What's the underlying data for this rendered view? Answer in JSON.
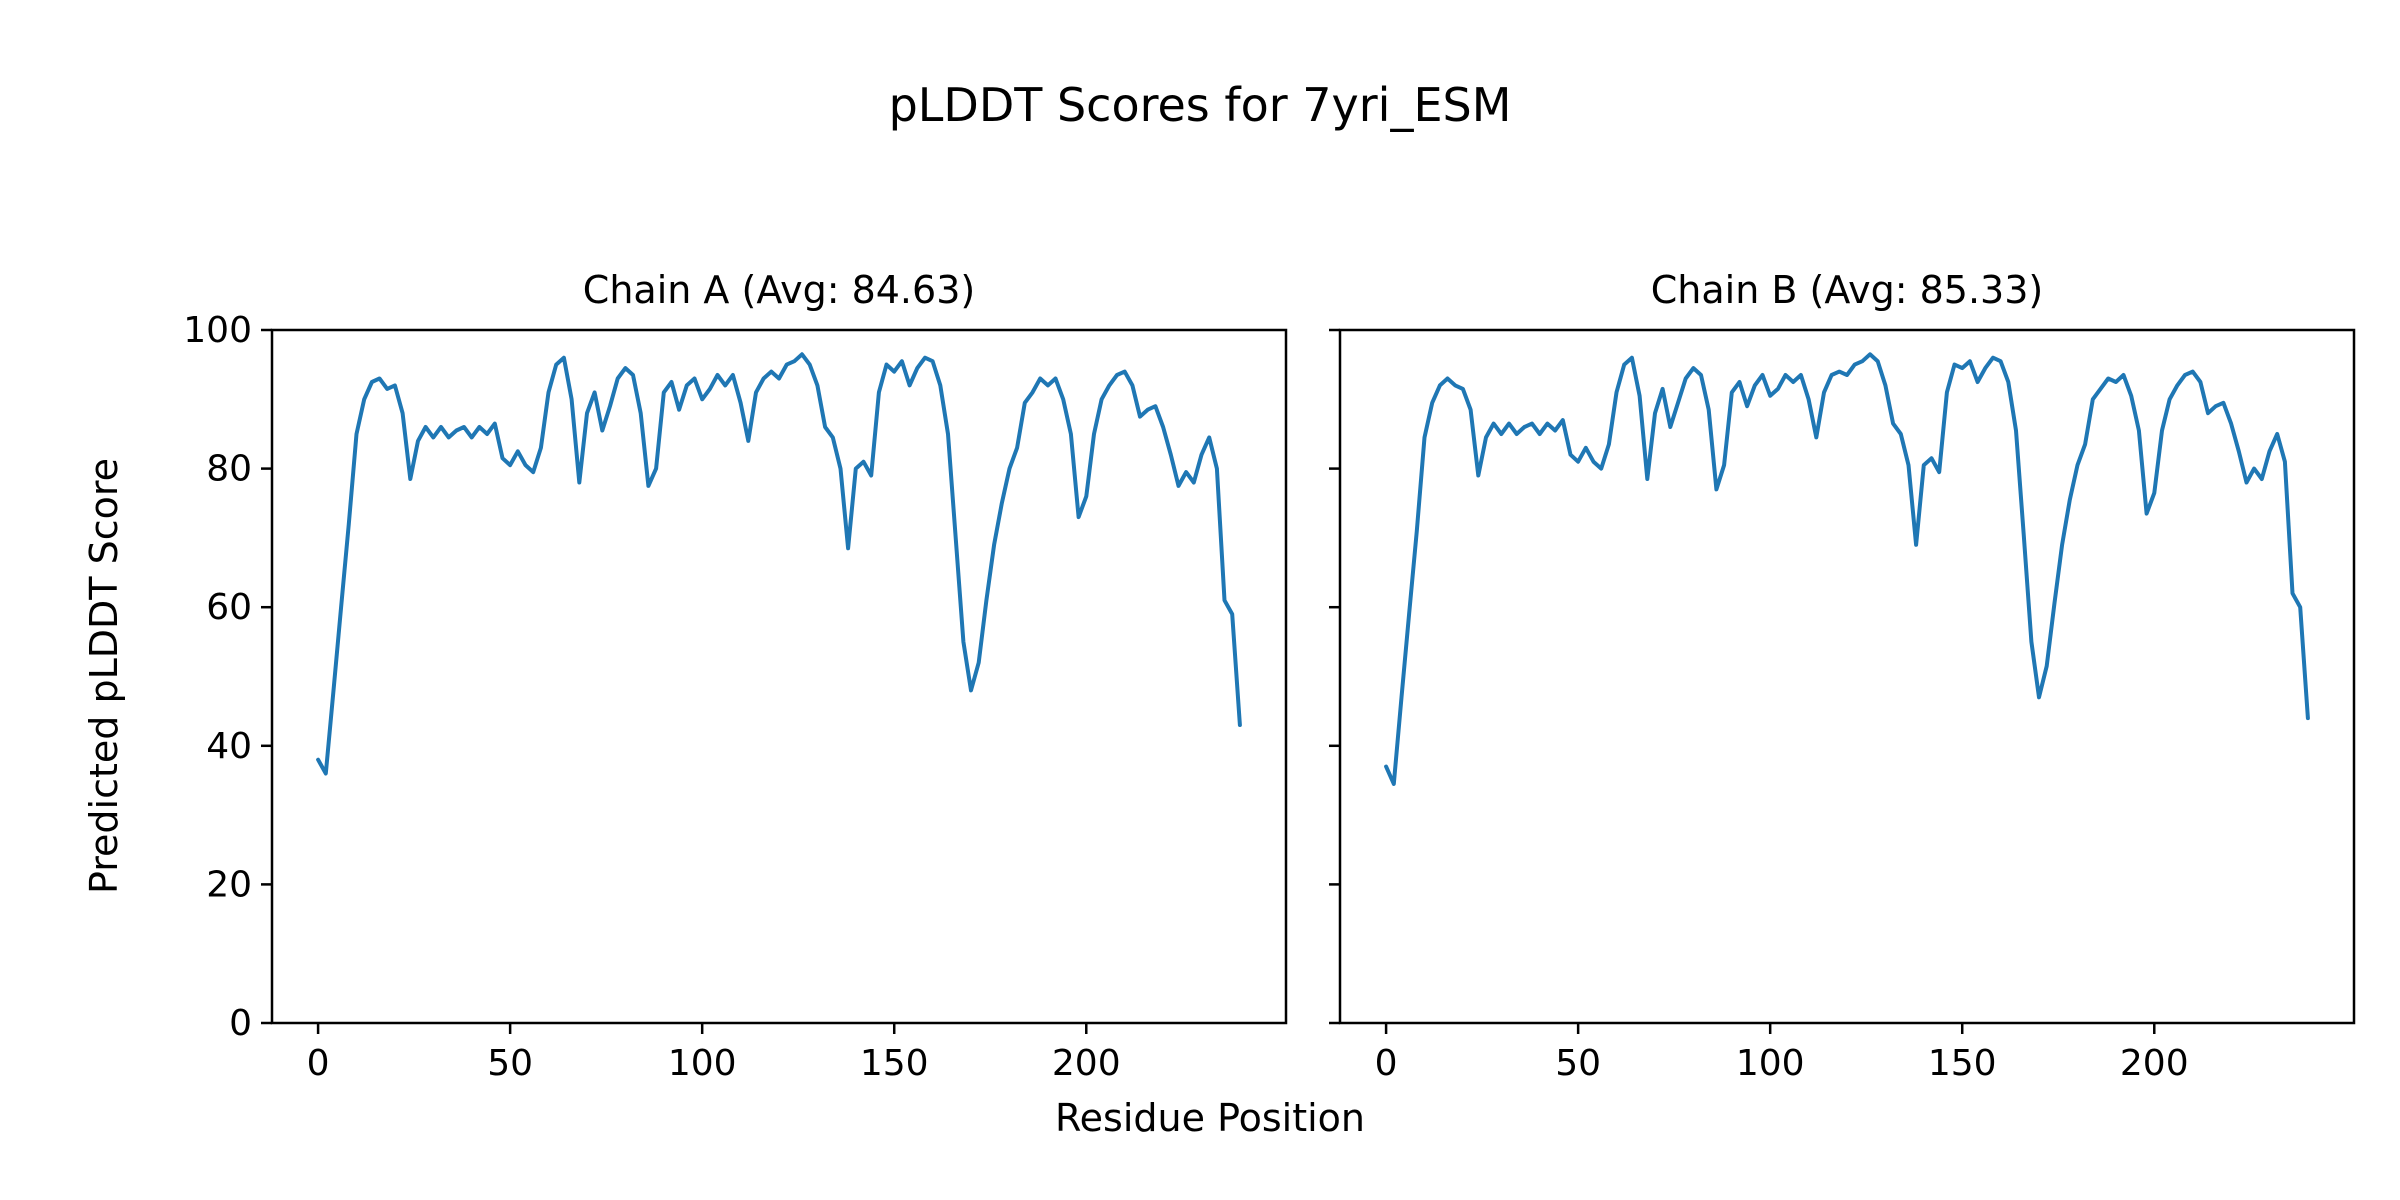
{
  "figure": {
    "title": "pLDDT Scores for 7yri_ESM",
    "xlabel": "Residue Position",
    "ylabel": "Predicted pLDDT Score"
  },
  "chart_data": {
    "type": "line",
    "title": "pLDDT Scores for 7yri_ESM",
    "xlabel": "Residue Position",
    "ylabel": "Predicted pLDDT Score",
    "grid": false,
    "legend": "none",
    "line_color": "#1f77b4",
    "xlim": [
      -12,
      252
    ],
    "ylim": [
      0,
      100
    ],
    "xticks": [
      0,
      50,
      100,
      150,
      200
    ],
    "yticks": [
      0,
      20,
      40,
      60,
      80,
      100
    ],
    "x_step": 2,
    "subplots": [
      {
        "title": "Chain A (Avg: 84.63)",
        "avg": 84.63,
        "show_y_tick_labels": true,
        "y": [
          38,
          36,
          48,
          60,
          72,
          85,
          90,
          92.5,
          93,
          91.5,
          92,
          88,
          78.5,
          84,
          86,
          84.5,
          86,
          84.5,
          85.5,
          86,
          84.5,
          86,
          85,
          86.5,
          81.5,
          80.5,
          82.5,
          80.5,
          79.5,
          83,
          91,
          95,
          96,
          90,
          78,
          88,
          91,
          85.5,
          89,
          93,
          94.5,
          93.5,
          88,
          77.5,
          80,
          91,
          92.5,
          88.5,
          92,
          93,
          90,
          91.5,
          93.5,
          92,
          93.5,
          89.5,
          84,
          91,
          93,
          94,
          93,
          95,
          95.5,
          96.5,
          95,
          92,
          86,
          84.5,
          80,
          68.5,
          80,
          81,
          79,
          91,
          95,
          94,
          95.5,
          92,
          94.5,
          96,
          95.5,
          92,
          85,
          70,
          55,
          48,
          52,
          61,
          69,
          75,
          80,
          83,
          89.5,
          91,
          93,
          92,
          93,
          90,
          85,
          73,
          76,
          85,
          90,
          92,
          93.5,
          94,
          92,
          87.5,
          88.5,
          89,
          86,
          82,
          77.5,
          79.5,
          78,
          82,
          84.5,
          80,
          61,
          59,
          43
        ]
      },
      {
        "title": "Chain B (Avg: 85.33)",
        "avg": 85.33,
        "show_y_tick_labels": false,
        "y": [
          37,
          34.5,
          47,
          59,
          71,
          84.5,
          89.5,
          92,
          93,
          92,
          91.5,
          88.5,
          79,
          84.5,
          86.5,
          85,
          86.5,
          85,
          86,
          86.5,
          85,
          86.5,
          85.5,
          87,
          82,
          81,
          83,
          81,
          80,
          83.5,
          91,
          95,
          96,
          90.5,
          78.5,
          88,
          91.5,
          86,
          89.5,
          93,
          94.5,
          93.5,
          88.5,
          77,
          80.5,
          91,
          92.5,
          89,
          92,
          93.5,
          90.5,
          91.5,
          93.5,
          92.5,
          93.5,
          90,
          84.5,
          91,
          93.5,
          94,
          93.5,
          95,
          95.5,
          96.5,
          95.5,
          92,
          86.5,
          85,
          80.5,
          69,
          80.5,
          81.5,
          79.5,
          91,
          95,
          94.5,
          95.5,
          92.5,
          94.5,
          96,
          95.5,
          92.5,
          85.5,
          70.5,
          55,
          47,
          51.5,
          60.5,
          69,
          75.5,
          80.5,
          83.5,
          90,
          91.5,
          93,
          92.5,
          93.5,
          90.5,
          85.5,
          73.5,
          76.5,
          85.5,
          90,
          92,
          93.5,
          94,
          92.5,
          88,
          89,
          89.5,
          86.5,
          82.5,
          78,
          80,
          78.5,
          82.5,
          85,
          81,
          62,
          60,
          44
        ]
      }
    ]
  }
}
